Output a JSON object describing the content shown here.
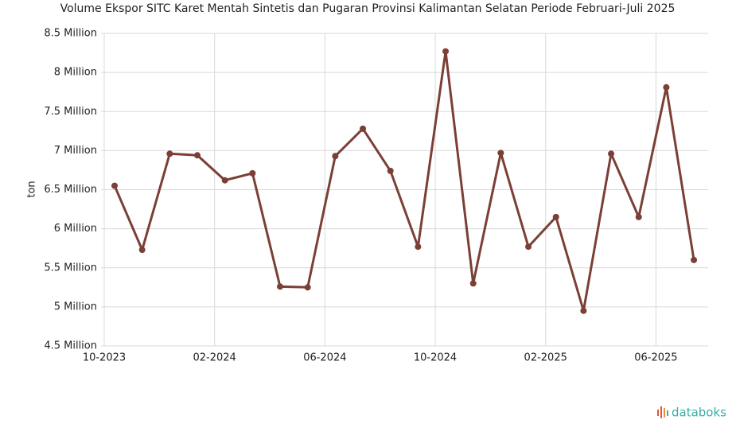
{
  "chart_data": {
    "type": "line",
    "title": "Volume Ekspor SITC Karet Mentah Sintetis dan Pugaran Provinsi Kalimantan Selatan Periode Februari-Juli 2025",
    "ylabel": "ton",
    "x": [
      "10-2023",
      null,
      null,
      null,
      "02-2024",
      null,
      null,
      null,
      "06-2024",
      null,
      null,
      null,
      "10-2024",
      null,
      null,
      null,
      "02-2025",
      null,
      null,
      null,
      "06-2025",
      null
    ],
    "series": [
      {
        "name": "Volume",
        "color": "#7b3f36",
        "values": [
          6550000,
          5730000,
          6960000,
          6940000,
          6620000,
          6710000,
          5260000,
          5250000,
          6930000,
          7280000,
          6740000,
          5770000,
          8270000,
          5300000,
          6970000,
          5770000,
          6150000,
          4950000,
          6960000,
          6150000,
          7810000,
          5600000
        ]
      }
    ],
    "ylim": [
      4500000,
      8500000
    ],
    "yticks": [
      {
        "value": 4500000,
        "label": "4.5 Million"
      },
      {
        "value": 5000000,
        "label": "5 Million"
      },
      {
        "value": 5500000,
        "label": "5.5 Million"
      },
      {
        "value": 6000000,
        "label": "6 Million"
      },
      {
        "value": 6500000,
        "label": "6.5 Million"
      },
      {
        "value": 7000000,
        "label": "7 Million"
      },
      {
        "value": 7500000,
        "label": "7.5 Million"
      },
      {
        "value": 8000000,
        "label": "8 Million"
      },
      {
        "value": 8500000,
        "label": "8.5 Million"
      }
    ],
    "grid": true,
    "brand": "databoks"
  }
}
